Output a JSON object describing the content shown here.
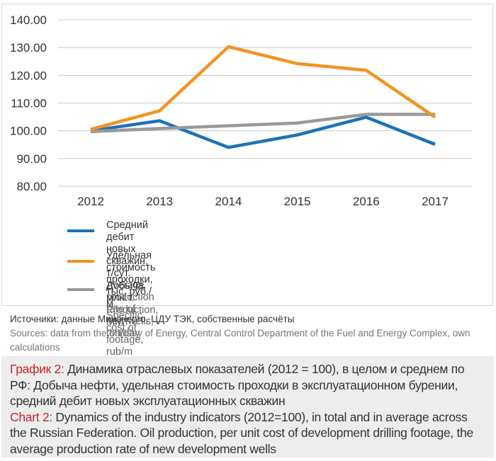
{
  "chart_data": {
    "type": "line",
    "title": "",
    "xlabel": "",
    "ylabel": "",
    "x": [
      "2012",
      "2013",
      "2014",
      "2015",
      "2016",
      "2017"
    ],
    "ylim": [
      80,
      140
    ],
    "yticks": [
      "80.00",
      "90.00",
      "100.00",
      "110.00",
      "120.00",
      "130.00",
      "140.00"
    ],
    "ytick_values": [
      80,
      90,
      100,
      110,
      120,
      130,
      140
    ],
    "grid": true,
    "legend_position": "bottom",
    "series": [
      {
        "name_ru": "Средний дебит новых скважин, т/сут.",
        "name_en": "Average production rate of new wells, ton/day",
        "color": "#1a73b9",
        "values": [
          100.0,
          103.6,
          94.0,
          98.5,
          104.9,
          95.1
        ]
      },
      {
        "name_ru": "Удельная стоимость проходки, тыс. руб./м.",
        "name_en": "Specific cost of footage, rub/m",
        "color": "#f39323",
        "values": [
          100.5,
          107.2,
          130.3,
          124.2,
          121.8,
          104.9
        ]
      },
      {
        "name_ru": "Добыча, млн.т.",
        "name_en": "Production, MMT",
        "color": "#999999",
        "values": [
          99.7,
          100.8,
          101.8,
          102.8,
          105.9,
          105.9
        ]
      }
    ]
  },
  "sources": {
    "ru": "Источники: данные Минэнерго, ЦДУ ТЭК, собственные расчёты",
    "en": "Sources: data from the Ministry of Energy, Central Control Department of the Fuel and Energy Complex, own calculations"
  },
  "caption": {
    "ru_label": "График 2:",
    "ru_text": " Динамика отраслевых показателей (2012 = 100), в целом и среднем по РФ: Добыча нефти, удельная стоимость проходки в эксплуатационном бурении, средний дебит новых эксплуатационных скважин",
    "en_label": "Chart 2:",
    "en_text": " Dynamics of the industry indicators (2012=100), in total and in average across the Russian Federation. Oil production, per unit cost of development drilling footage, the average production rate of new development wells",
    "label_color": "#c1272d"
  }
}
